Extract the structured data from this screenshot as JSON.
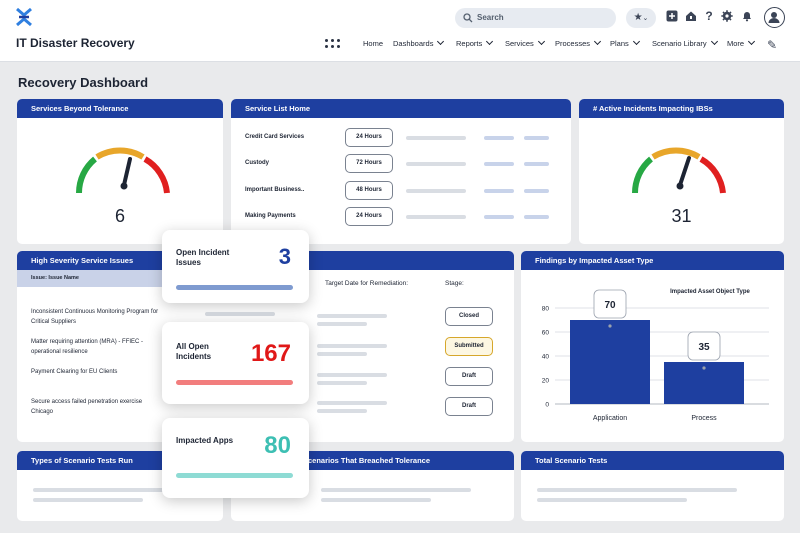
{
  "app": {
    "title": "IT Disaster Recovery"
  },
  "search": {
    "placeholder": "Search"
  },
  "nav": [
    {
      "label": "Home",
      "chevron": false
    },
    {
      "label": "Dashboards",
      "chevron": true
    },
    {
      "label": "Reports",
      "chevron": true
    },
    {
      "label": "Services",
      "chevron": true
    },
    {
      "label": "Processes",
      "chevron": true
    },
    {
      "label": "Plans",
      "chevron": true
    },
    {
      "label": "Scenario Library",
      "chevron": true
    },
    {
      "label": "More",
      "chevron": true
    }
  ],
  "page": {
    "title": "Recovery Dashboard"
  },
  "cards": {
    "beyond_tolerance": {
      "title": "Services Beyond Tolerance",
      "value": "6"
    },
    "service_list": {
      "title": "Service List Home",
      "rows": [
        {
          "name": "Credit Card Services",
          "rto": "24 Hours"
        },
        {
          "name": "Custody",
          "rto": "72 Hours"
        },
        {
          "name": "Important Business..",
          "rto": "48 Hours"
        },
        {
          "name": "Making Payments",
          "rto": "24 Hours"
        }
      ]
    },
    "active_incidents": {
      "title": "# Active Incidents Impacting IBSs",
      "value": "31"
    },
    "high_severity": {
      "title": "High Severity Service Issues",
      "subheader": "Issue: Issue Name",
      "issues": [
        "Inconsistent Continuous Monitoring Program for Critical Suppliers",
        "Matter requiring attention (MRA) - FFIEC - operational resilience",
        "Payment Clearing for EU Clients",
        "Secure access failed penetration exercise Chicago"
      ],
      "col_target": "Target Date for Remediation:",
      "col_stage": "Stage:",
      "stages": [
        "Closed",
        "Submitted",
        "Draft",
        "Draft"
      ]
    },
    "findings": {
      "title": "Findings by Impacted Asset Type",
      "legend_title": "Impacted Asset Object Type"
    },
    "scenario_types": {
      "title": "Types of Scenario Tests Run"
    },
    "breached": {
      "title": "Scenarios That Breached Tolerance"
    },
    "total_tests": {
      "title": "Total Scenario Tests"
    }
  },
  "popups": [
    {
      "title": "Open Incident Issues",
      "value": "3",
      "value_color": "#1e3fa0",
      "bar_color": "#7f9bd0"
    },
    {
      "title": "All Open Incidents",
      "value": "167",
      "value_color": "#e01818",
      "bar_color": "#f27d7d"
    },
    {
      "title": "Impacted Apps",
      "value": "80",
      "value_color": "#3dbfb3",
      "bar_color": "#8edbd4"
    }
  ],
  "chart_data": {
    "type": "bar",
    "title": "Findings by Impacted Asset Type",
    "legend": "Impacted Asset Object Type",
    "categories": [
      "Application",
      "Process"
    ],
    "values": [
      70,
      35
    ],
    "yticks": [
      0,
      20,
      40,
      60,
      80
    ],
    "ylim": [
      0,
      80
    ],
    "grid": true,
    "bar_color": "#1e3fa0"
  }
}
